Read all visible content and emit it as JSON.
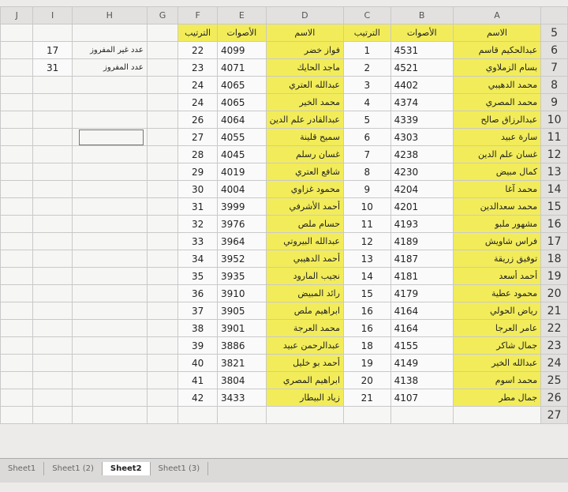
{
  "column_letters": [
    "A",
    "B",
    "C",
    "D",
    "E",
    "F",
    "G",
    "H",
    "I",
    "J"
  ],
  "row_numbers": [
    5,
    6,
    7,
    8,
    9,
    10,
    11,
    12,
    13,
    14,
    15,
    16,
    17,
    18,
    19,
    20,
    21,
    22,
    23,
    24,
    25,
    26,
    27
  ],
  "results_table": {
    "headers": [
      "الاسم",
      "الأصوات",
      "الترتيب"
    ],
    "rows": [
      [
        "عبدالحكيم قاسم",
        4531,
        1
      ],
      [
        "بسام الزملاوي",
        4521,
        2
      ],
      [
        "محمد الدهيبي",
        4402,
        3
      ],
      [
        "محمد المصري",
        4374,
        4
      ],
      [
        "عبدالرزاق صالح",
        4339,
        5
      ],
      [
        "سارة عبيد",
        4303,
        6
      ],
      [
        "غسان علم الدين",
        4238,
        7
      ],
      [
        "كمال مبيض",
        4230,
        8
      ],
      [
        "محمد آغا",
        4204,
        9
      ],
      [
        "محمد سعدالدين",
        4201,
        10
      ],
      [
        "مشهور ملبو",
        4193,
        11
      ],
      [
        "فراس شاويش",
        4189,
        12
      ],
      [
        "توفيق زريقة",
        4187,
        13
      ],
      [
        "أحمد أسعد",
        4181,
        14
      ],
      [
        "محمود عطية",
        4179,
        15
      ],
      [
        "رياض الحولي",
        4164,
        16
      ],
      [
        "عامر العرجا",
        4164,
        16
      ],
      [
        "جمال شاكر",
        4155,
        18
      ],
      [
        "عبدالله الخير",
        4149,
        19
      ],
      [
        "محمد اسوم",
        4138,
        20
      ],
      [
        "جمال مطر",
        4107,
        21
      ]
    ]
  },
  "results_table_2": {
    "headers": [
      "الاسم",
      "الأصوات",
      "الترتيب"
    ],
    "rows": [
      [
        "فواز خضر",
        4099,
        22
      ],
      [
        "ماجد الحايك",
        4071,
        23
      ],
      [
        "عبدالله العتري",
        4065,
        24
      ],
      [
        "محمد الخير",
        4065,
        24
      ],
      [
        "عبدالقادر علم الدين",
        4064,
        26
      ],
      [
        "سميح قلينة",
        4055,
        27
      ],
      [
        "غسان رسلم",
        4045,
        28
      ],
      [
        "شافع العتري",
        4019,
        29
      ],
      [
        "محمود غزاوي",
        4004,
        30
      ],
      [
        "أحمد الأشرفي",
        3999,
        31
      ],
      [
        "حسام ملص",
        3976,
        32
      ],
      [
        "عبدالله البيروتي",
        3964,
        33
      ],
      [
        "أحمد الدهيبي",
        3952,
        34
      ],
      [
        "نجيب المارود",
        3935,
        35
      ],
      [
        "رائد المبيض",
        3910,
        36
      ],
      [
        "ابراهيم ملص",
        3905,
        37
      ],
      [
        "محمد العرجة",
        3901,
        38
      ],
      [
        "عبدالرحمن عبيد",
        3886,
        39
      ],
      [
        "أحمد بو خليل",
        3821,
        40
      ],
      [
        "ابراهيم المصري",
        3804,
        41
      ],
      [
        "زياد البيطار",
        3433,
        42
      ]
    ]
  },
  "notes": [
    {
      "label": "عدد غير المفروز",
      "value": 17
    },
    {
      "label": "عدد المفروز",
      "value": 31
    }
  ],
  "sheet_tabs": [
    "Sheet1",
    "Sheet1 (2)",
    "Sheet2",
    "Sheet1 (3)"
  ]
}
